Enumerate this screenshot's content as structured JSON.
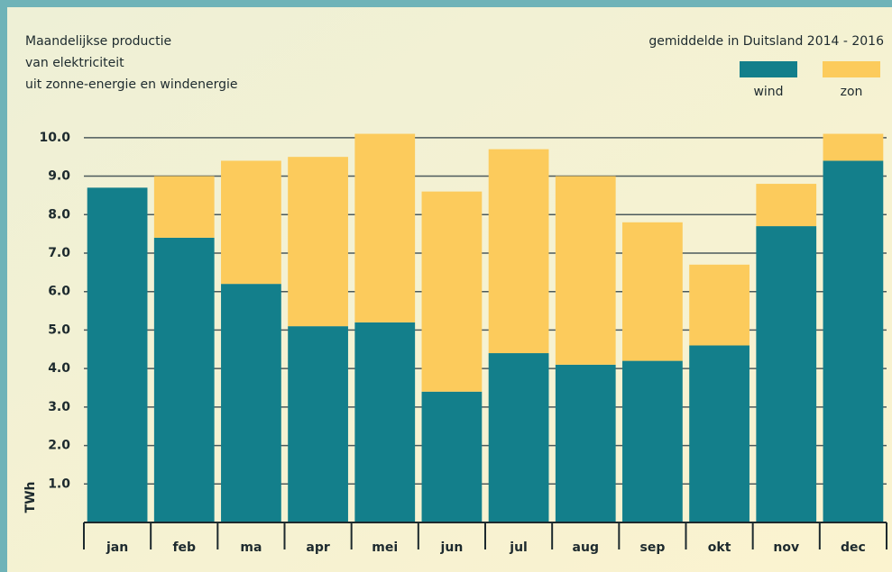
{
  "chart_data": {
    "type": "stacked_bar",
    "title_lines": [
      "Maandelijkse productie",
      "van elektriciteit",
      "uit zonne-energie en windenergie"
    ],
    "subtitle": "gemiddelde in Duitsland 2014 - 2016",
    "ylabel": "TWh",
    "categories": [
      "jan",
      "feb",
      "ma",
      "apr",
      "mei",
      "jun",
      "jul",
      "aug",
      "sep",
      "okt",
      "nov",
      "dec"
    ],
    "series": [
      {
        "name": "wind",
        "color": "#137f8b",
        "values": [
          8.7,
          7.4,
          6.2,
          5.1,
          5.2,
          3.4,
          4.4,
          4.1,
          4.2,
          4.6,
          7.7,
          9.4
        ]
      },
      {
        "name": "zon",
        "color": "#fccb5c",
        "values": [
          0,
          1.6,
          3.2,
          4.4,
          4.9,
          5.2,
          5.3,
          4.9,
          3.6,
          2.1,
          1.1,
          0.7
        ]
      }
    ],
    "ylim": [
      0,
      10.3
    ],
    "yticks": [
      {
        "value": 1,
        "label": "1.0"
      },
      {
        "value": 2,
        "label": "2.0"
      },
      {
        "value": 3,
        "label": "3.0"
      },
      {
        "value": 4,
        "label": "4.0"
      },
      {
        "value": 5,
        "label": "5.0"
      },
      {
        "value": 6,
        "label": "6.0"
      },
      {
        "value": 7,
        "label": "7.0"
      },
      {
        "value": 8,
        "label": "8.0"
      },
      {
        "value": 9,
        "label": "9.0"
      },
      {
        "value": 10,
        "label": "10.0"
      }
    ],
    "grid": true
  }
}
